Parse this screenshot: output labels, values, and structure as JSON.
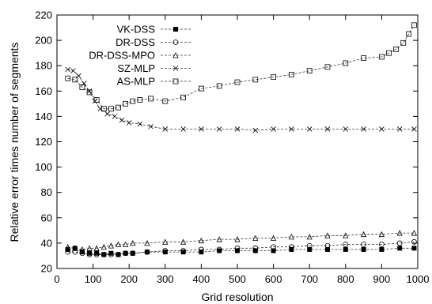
{
  "chart_data": {
    "type": "line",
    "title": "",
    "xlabel": "Grid resolution",
    "ylabel": "Relative error times number of segments",
    "xlim": [
      0,
      1000
    ],
    "ylim": [
      20,
      220
    ],
    "xticks": [
      0,
      100,
      200,
      300,
      400,
      500,
      600,
      700,
      800,
      900,
      1000
    ],
    "yticks": [
      20,
      40,
      60,
      80,
      100,
      120,
      140,
      160,
      180,
      200,
      220
    ],
    "grid": false,
    "legend_position": "top-left",
    "series": [
      {
        "name": "VK-DSS",
        "marker": "filled-square",
        "x": [
          30,
          50,
          70,
          90,
          110,
          130,
          150,
          170,
          190,
          210,
          250,
          300,
          350,
          400,
          450,
          500,
          550,
          600,
          650,
          700,
          750,
          800,
          850,
          900,
          950,
          990
        ],
        "values": [
          35,
          36,
          33,
          32,
          32,
          31,
          32,
          31,
          32,
          32,
          33,
          33,
          33,
          33,
          34,
          34,
          34,
          34,
          35,
          35,
          35,
          35,
          35,
          35,
          36,
          36
        ]
      },
      {
        "name": "DR-DSS",
        "marker": "open-circle",
        "x": [
          30,
          50,
          70,
          90,
          110,
          130,
          150,
          170,
          190,
          210,
          250,
          300,
          350,
          400,
          450,
          500,
          550,
          600,
          650,
          700,
          750,
          800,
          850,
          900,
          950,
          990
        ],
        "values": [
          33,
          33,
          32,
          31,
          31,
          31,
          31,
          31,
          32,
          32,
          33,
          34,
          34,
          35,
          35,
          36,
          36,
          37,
          37,
          38,
          38,
          39,
          39,
          39,
          40,
          41
        ]
      },
      {
        "name": "DR-DSS-MPO",
        "marker": "open-triangle",
        "x": [
          30,
          50,
          70,
          90,
          110,
          130,
          150,
          170,
          190,
          210,
          250,
          300,
          350,
          400,
          450,
          500,
          550,
          600,
          650,
          700,
          750,
          800,
          850,
          900,
          950,
          990
        ],
        "values": [
          37,
          36,
          35,
          36,
          36,
          37,
          38,
          39,
          39,
          40,
          40,
          41,
          41,
          42,
          43,
          43,
          44,
          44,
          45,
          45,
          46,
          46,
          47,
          47,
          48,
          48
        ]
      },
      {
        "name": "SZ-MLP",
        "marker": "cross",
        "x": [
          30,
          45,
          60,
          75,
          90,
          105,
          120,
          140,
          160,
          180,
          200,
          230,
          260,
          300,
          350,
          400,
          450,
          500,
          550,
          600,
          650,
          700,
          750,
          800,
          850,
          900,
          950,
          990
        ],
        "values": [
          177,
          176,
          172,
          166,
          160,
          152,
          146,
          142,
          140,
          137,
          135,
          134,
          132,
          130,
          130,
          130,
          130,
          130,
          129,
          130,
          130,
          130,
          130,
          130,
          130,
          130,
          130,
          130
        ]
      },
      {
        "name": "AS-MLP",
        "marker": "open-square",
        "x": [
          30,
          50,
          70,
          90,
          110,
          130,
          150,
          170,
          190,
          210,
          230,
          260,
          300,
          350,
          400,
          450,
          500,
          550,
          600,
          650,
          700,
          750,
          800,
          850,
          900,
          920,
          940,
          960,
          975,
          990
        ],
        "values": [
          170,
          169,
          163,
          159,
          153,
          146,
          146,
          147,
          150,
          152,
          153,
          154,
          152,
          155,
          162,
          164,
          167,
          169,
          171,
          173,
          176,
          179,
          182,
          186,
          187,
          190,
          193,
          198,
          205,
          212
        ]
      }
    ]
  }
}
